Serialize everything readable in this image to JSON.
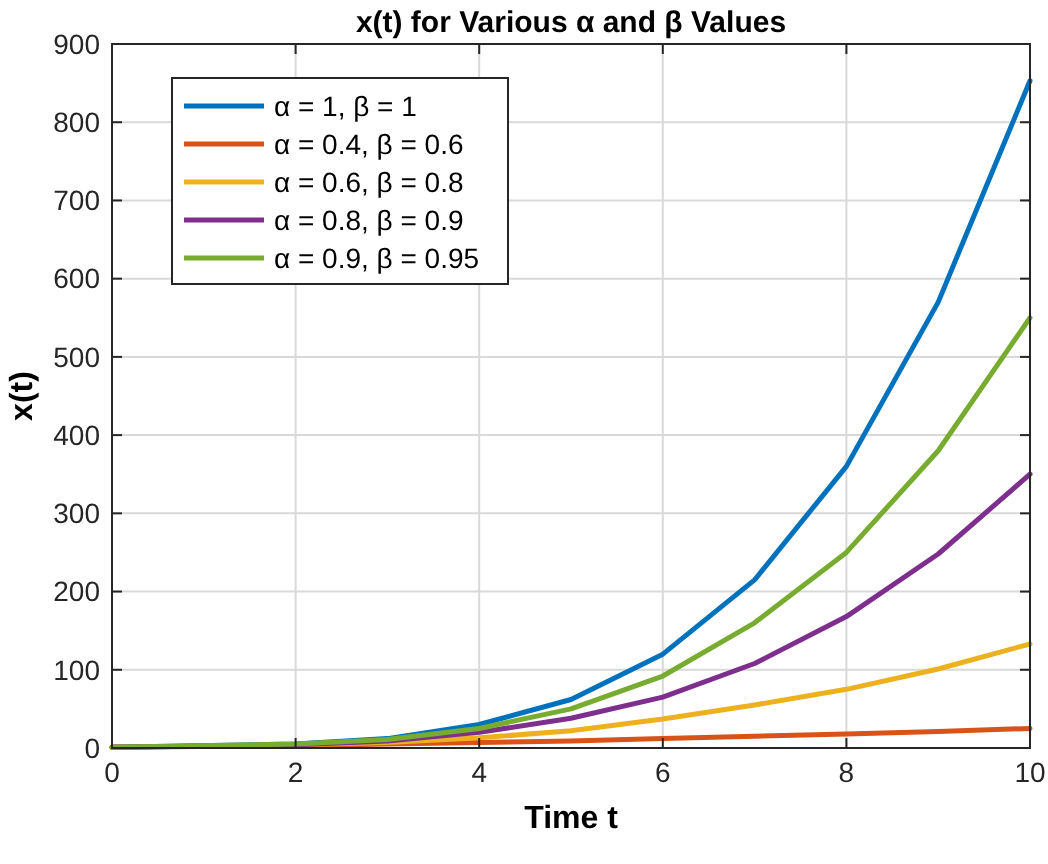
{
  "chart_data": {
    "type": "line",
    "title": "x(t) for Various α and β Values",
    "xlabel": "Time t",
    "ylabel": "x(t)",
    "x": [
      0,
      2,
      3,
      4,
      5,
      6,
      7,
      8,
      9,
      10
    ],
    "series": [
      {
        "name": "α = 1, β = 1",
        "color": "#0072bd",
        "values": [
          1,
          5,
          12,
          30,
          62,
          120,
          215,
          360,
          570,
          853
        ]
      },
      {
        "name": "α = 0.4, β = 0.6",
        "color": "#d95319",
        "values": [
          1,
          3,
          5,
          7,
          9,
          12,
          15,
          18,
          21,
          25
        ]
      },
      {
        "name": "α = 0.6, β = 0.8",
        "color": "#edb120",
        "values": [
          1,
          4,
          7,
          13,
          22,
          37,
          55,
          75,
          101,
          133
        ]
      },
      {
        "name": "α = 0.8, β = 0.9",
        "color": "#7e2f8e",
        "values": [
          1,
          4,
          9,
          20,
          38,
          65,
          108,
          168,
          248,
          350
        ]
      },
      {
        "name": "α = 0.9, β = 0.95",
        "color": "#77ac30",
        "values": [
          1,
          5,
          11,
          25,
          50,
          92,
          160,
          250,
          380,
          550
        ]
      }
    ],
    "xlim": [
      0,
      10
    ],
    "xticks": [
      0,
      2,
      4,
      6,
      8,
      10
    ],
    "ylim": [
      0,
      900
    ],
    "yticks": [
      0,
      100,
      200,
      300,
      400,
      500,
      600,
      700,
      800,
      900
    ],
    "grid": true,
    "legend": "top left",
    "marker": "none",
    "line_style": "solid"
  }
}
